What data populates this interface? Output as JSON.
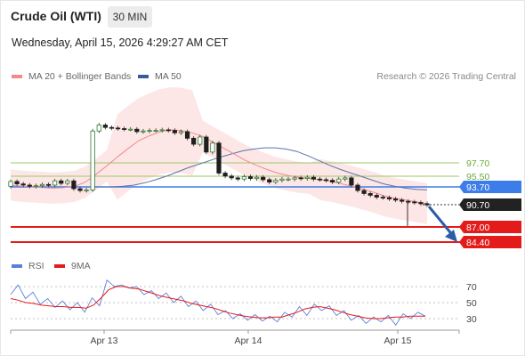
{
  "header": {
    "title": "Crude Oil (WTI)",
    "timeframe_button": "30 MIN",
    "datetime": "Wednesday, April 15, 2026 4:29:27 AM CET"
  },
  "legend": {
    "items": [
      {
        "label": "MA 20 + Bollinger Bands",
        "color": "#f08b8b"
      },
      {
        "label": "MA 50",
        "color": "#3a5a9c"
      }
    ],
    "copyright": "Research © 2026 Trading Central"
  },
  "colors": {
    "ma20": "#f08b8b",
    "ma50": "#5a73ad",
    "bollinger_fill": "#fde3e3",
    "resistance_line": "#3d7de8",
    "support_line": "#e41b1b",
    "pivot_line": "#9bc96a",
    "arrow": "#2c5ca6",
    "rsi_line": "#5b80d8",
    "rsi_ma": "#e41b1b"
  },
  "chart_data": [
    {
      "type": "line",
      "subtype": "candlestick",
      "x_ticks": [
        "Apr 13",
        "Apr 14",
        "Apr 15"
      ],
      "price_levels": [
        {
          "label": "97.70",
          "kind": "pivot"
        },
        {
          "label": "95.50",
          "kind": "pivot"
        },
        {
          "label": "93.70",
          "kind": "resistance"
        },
        {
          "label": "90.70",
          "kind": "last"
        },
        {
          "label": "87.00",
          "kind": "support"
        },
        {
          "label": "84.40",
          "kind": "support"
        }
      ],
      "candles": [
        [
          93.8,
          94.6
        ],
        [
          94.6,
          94.2
        ],
        [
          94.2,
          94.0
        ],
        [
          94.0,
          93.8
        ],
        [
          93.8,
          93.9
        ],
        [
          93.9,
          94.1
        ],
        [
          94.1,
          94.0
        ],
        [
          94.0,
          94.7
        ],
        [
          94.7,
          94.3
        ],
        [
          94.3,
          94.7
        ],
        [
          94.7,
          93.4
        ],
        [
          93.4,
          93.1
        ],
        [
          93.1,
          93.2
        ],
        [
          93.2,
          103.0
        ],
        [
          103.0,
          104.0
        ],
        [
          104.0,
          103.6
        ],
        [
          103.6,
          103.5
        ],
        [
          103.5,
          103.4
        ],
        [
          103.4,
          103.3
        ],
        [
          103.3,
          103.3
        ],
        [
          103.3,
          102.9
        ],
        [
          102.9,
          103.0
        ],
        [
          103.0,
          103.1
        ],
        [
          103.1,
          103.1
        ],
        [
          103.1,
          103.2
        ],
        [
          103.2,
          103.1
        ],
        [
          103.1,
          102.7
        ],
        [
          102.7,
          102.9
        ],
        [
          102.9,
          101.8
        ],
        [
          101.8,
          100.8
        ],
        [
          100.8,
          102.0
        ],
        [
          102.0,
          99.5
        ],
        [
          99.5,
          101.0
        ],
        [
          101.0,
          96.0
        ],
        [
          96.0,
          95.5
        ],
        [
          95.5,
          95.2
        ],
        [
          95.2,
          95.0
        ],
        [
          95.0,
          95.4
        ],
        [
          95.4,
          95.1
        ],
        [
          95.1,
          95.3
        ],
        [
          95.3,
          94.9
        ],
        [
          94.9,
          94.5
        ],
        [
          94.5,
          94.8
        ],
        [
          94.8,
          95.0
        ],
        [
          95.0,
          95.0
        ],
        [
          95.0,
          95.2
        ],
        [
          95.2,
          95.1
        ],
        [
          95.1,
          95.3
        ],
        [
          95.3,
          95.0
        ],
        [
          95.0,
          94.9
        ],
        [
          94.9,
          94.8
        ],
        [
          94.8,
          94.5
        ],
        [
          94.5,
          95.0
        ],
        [
          95.0,
          95.2
        ],
        [
          95.2,
          94.0
        ],
        [
          94.0,
          93.1
        ],
        [
          93.1,
          92.6
        ],
        [
          92.6,
          92.3
        ],
        [
          92.3,
          92.0
        ],
        [
          92.0,
          91.9
        ],
        [
          91.9,
          91.7
        ],
        [
          91.7,
          91.5
        ],
        [
          91.5,
          91.3
        ],
        [
          91.3,
          91.2
        ],
        [
          91.2,
          91.1
        ],
        [
          91.1,
          90.9
        ],
        [
          90.9,
          90.7
        ]
      ],
      "ma20": [
        94.0,
        93.8,
        93.7,
        93.6,
        93.5,
        93.6,
        93.8,
        94.5,
        95.8,
        97.2,
        98.7,
        100.1,
        101.4,
        102.2,
        102.9,
        103.2,
        103.1,
        102.7,
        102.1,
        101.1,
        100.1,
        99.1,
        98.1,
        97.3,
        96.6,
        96.0,
        95.6,
        95.3,
        95.1,
        94.9,
        94.6,
        94.2,
        93.8,
        93.3,
        92.8,
        92.2,
        91.8,
        91.5,
        91.2,
        90.9
      ],
      "ma50": [
        93.7,
        93.7,
        93.7,
        93.8,
        94.0,
        94.4,
        94.9,
        95.5,
        96.2,
        96.9,
        97.5,
        98.1,
        98.7,
        99.2,
        99.7,
        100.0,
        100.2,
        100.2,
        100.0,
        99.6,
        98.9,
        98.1,
        97.3,
        96.6,
        96.0,
        95.4,
        94.8,
        94.2,
        93.8,
        93.5,
        93.3,
        93.2
      ],
      "rsi": [
        60,
        72,
        55,
        63,
        48,
        55,
        44,
        52,
        41,
        50,
        38,
        56,
        46,
        78,
        70,
        72,
        68,
        70,
        60,
        65,
        55,
        62,
        50,
        58,
        45,
        52,
        40,
        48,
        35,
        40,
        30,
        36,
        28,
        35,
        27,
        33,
        26,
        38,
        32,
        45,
        34,
        48,
        40,
        46,
        34,
        40,
        28,
        34,
        24,
        32,
        26,
        34,
        22,
        36,
        30,
        38,
        33
      ],
      "rsi_ma": [
        55,
        53,
        50,
        49,
        47,
        46,
        45,
        45,
        44,
        44,
        43,
        47,
        56,
        66,
        70,
        70,
        68,
        67,
        64,
        61,
        58,
        56,
        54,
        52,
        49,
        47,
        45,
        43,
        40,
        37,
        35,
        33,
        32,
        31,
        31,
        32,
        32,
        35,
        38,
        42,
        44,
        45,
        43,
        41,
        38,
        35,
        33,
        31,
        30,
        30,
        31,
        32,
        32,
        33,
        33,
        33
      ],
      "rsi_levels": [
        "70",
        "50",
        "30"
      ]
    }
  ],
  "rsi_legend": {
    "items": [
      {
        "label": "RSI",
        "color": "#5b80d8"
      },
      {
        "label": "9MA",
        "color": "#e41b1b"
      }
    ]
  }
}
